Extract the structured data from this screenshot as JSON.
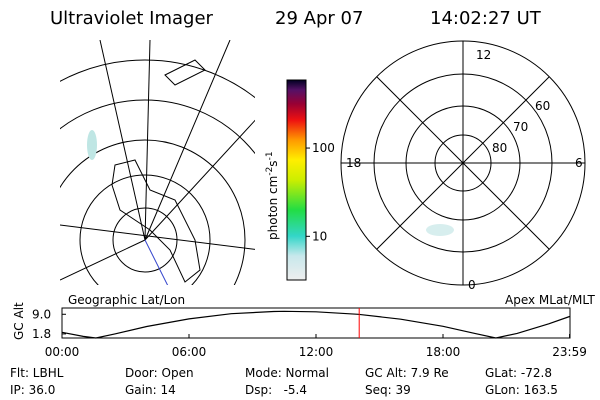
{
  "header": {
    "instrument": "Ultraviolet Imager",
    "date": "29 Apr 07",
    "time": "14:02:27 UT"
  },
  "colorbar": {
    "label": "photon cm",
    "label_sup1": "-2",
    "label_mid": "s",
    "label_sup2": "-1",
    "scale": "log",
    "clim": [
      3.2,
      590
    ],
    "ticks": [
      100,
      10
    ]
  },
  "polar": {
    "mlt_labels": [
      "12",
      "18",
      "6",
      "0"
    ],
    "lat_labels": [
      "60",
      "70",
      "80"
    ]
  },
  "panel_labels": {
    "left": "Geographic Lat/Lon",
    "right": "Apex MLat/MLT"
  },
  "orbit": {
    "type": "line",
    "ylabel": "GC Alt",
    "color": "#000000",
    "xlim": [
      0,
      24
    ],
    "ylim": [
      0.3,
      11.3
    ],
    "yticks": [
      {
        "value": 9,
        "label": "9.0"
      },
      {
        "value": 1.8,
        "label": "1.8"
      }
    ],
    "xticks": [
      {
        "value": 0,
        "label": "00:00"
      },
      {
        "value": 6,
        "label": "06:00"
      },
      {
        "value": 12,
        "label": "12:00"
      },
      {
        "value": 18,
        "label": "18:00"
      },
      {
        "value": 23.98,
        "label": "23:59"
      }
    ],
    "x": [
      0,
      1,
      1.6,
      2.5,
      4,
      6,
      8,
      10,
      10.5,
      12,
      14,
      16,
      18,
      19.5,
      20.5,
      21.5,
      23,
      23.98
    ],
    "values": [
      2.4,
      0.9,
      0.3,
      1.8,
      4.5,
      7.3,
      9.2,
      10.0,
      10.1,
      9.9,
      9.0,
      7.2,
      4.6,
      2.0,
      0.3,
      2.0,
      5.5,
      8.2
    ],
    "marker_color": "#ff0000"
  },
  "info": {
    "rows": [
      [
        "Flt: LBHL",
        "Door: Open",
        "Mode: Normal",
        "GC Alt: 7.9 Re",
        "GLat: -72.8"
      ],
      [
        "IP: 36.0",
        "Gain: 14",
        "Dsp:   -5.4",
        "Seq: 39",
        "GLon: 163.5"
      ]
    ]
  }
}
